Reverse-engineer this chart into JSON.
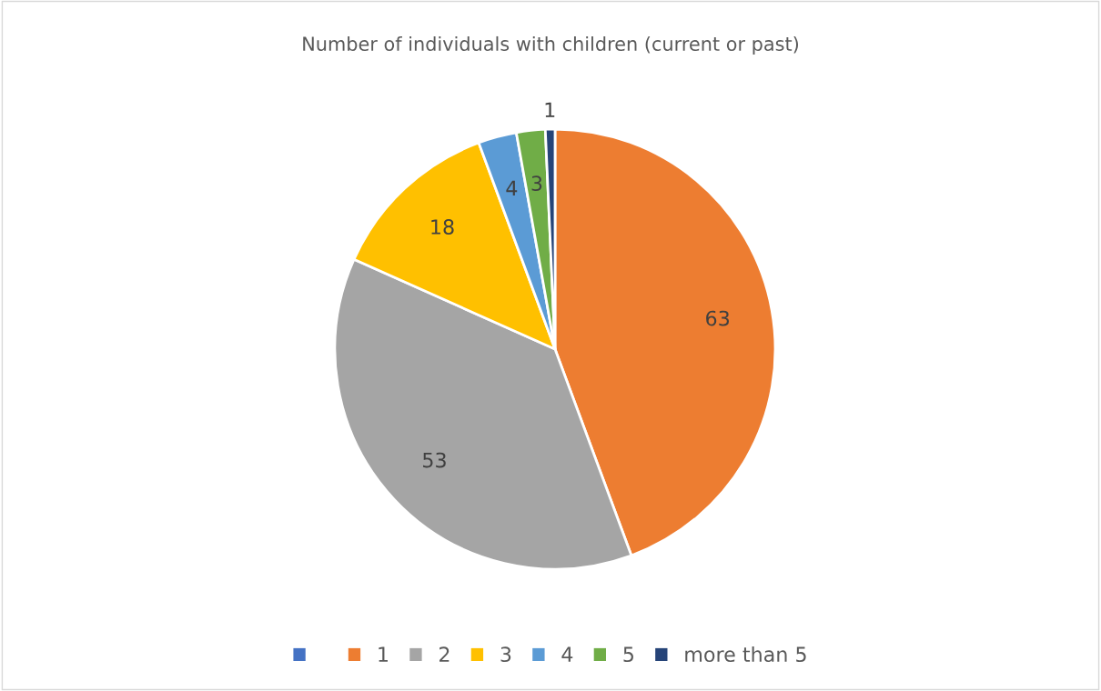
{
  "chart_data": {
    "type": "pie",
    "title": "Number of individuals with children (current or past)",
    "categories": [
      null,
      "1",
      "2",
      "3",
      "4",
      "5",
      "more than 5"
    ],
    "values": [
      0,
      63,
      53,
      18,
      4,
      3,
      1
    ],
    "colors": [
      "#4472c4",
      "#ed7d31",
      "#a5a5a5",
      "#ffc000",
      "#5b9bd5",
      "#70ad47",
      "#264478"
    ],
    "value_labels": [
      null,
      "63",
      "53",
      "18",
      "4",
      "3",
      "1"
    ],
    "legend": "bottom"
  }
}
